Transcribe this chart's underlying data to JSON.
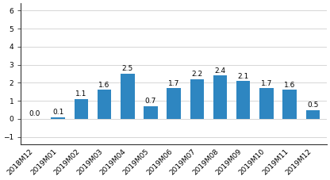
{
  "categories": [
    "2018M12",
    "2019M01",
    "2019M02",
    "2019M03",
    "2019M04",
    "2019M05",
    "2019M06",
    "2019M07",
    "2019M08",
    "2019M09",
    "2019M10",
    "2019M11",
    "2019M12"
  ],
  "values": [
    0.0,
    0.1,
    1.1,
    1.6,
    2.5,
    0.7,
    1.7,
    2.2,
    2.4,
    2.1,
    1.7,
    1.6,
    0.5
  ],
  "bar_color": "#2e86c1",
  "ylim": [
    -1.4,
    6.4
  ],
  "yticks": [
    -1,
    0,
    1,
    2,
    3,
    4,
    5,
    6
  ],
  "background_color": "#ffffff",
  "label_fontsize": 6.5,
  "tick_fontsize": 6.5,
  "bar_width": 0.6
}
